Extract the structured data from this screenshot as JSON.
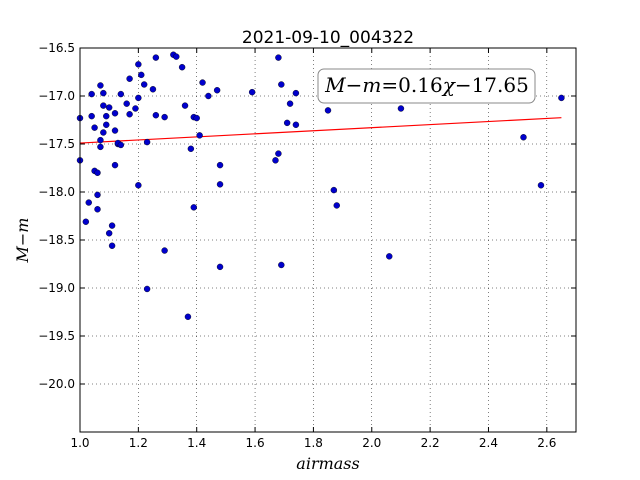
{
  "chart_data": {
    "type": "scatter",
    "title": "2021-09-10_004322",
    "xlabel": "airmass",
    "ylabel": "M−m",
    "xlim": [
      1.0,
      2.7
    ],
    "ylim": [
      -20.5,
      -16.5
    ],
    "y_inverted": true,
    "grid": true,
    "grid_style": "dotted",
    "xticks": [
      1.0,
      1.2,
      1.4,
      1.6,
      1.8,
      2.0,
      2.2,
      2.4,
      2.6
    ],
    "xtick_labels": [
      "1.0",
      "1.2",
      "1.4",
      "1.6",
      "1.8",
      "2.0",
      "2.2",
      "2.4",
      "2.6"
    ],
    "yticks": [
      -16.5,
      -17.0,
      -17.5,
      -18.0,
      -18.5,
      -19.0,
      -19.5,
      -20.0
    ],
    "ytick_labels": [
      "−16.5",
      "−17.0",
      "−17.5",
      "−18.0",
      "−18.5",
      "−19.0",
      "−19.5",
      "−20.0"
    ],
    "annotation": {
      "text_parts": [
        "M",
        "−",
        "m",
        "=0.16",
        "χ",
        "−17.65"
      ],
      "position": "top-right"
    },
    "fit_line": {
      "color": "#ff0000",
      "slope": 0.16,
      "intercept": -17.65,
      "x_range": [
        1.0,
        2.65
      ]
    },
    "series": [
      {
        "color": "#0000cc",
        "x": [
          1.0,
          1.0,
          1.02,
          1.03,
          1.04,
          1.04,
          1.05,
          1.05,
          1.06,
          1.06,
          1.06,
          1.07,
          1.07,
          1.07,
          1.08,
          1.08,
          1.08,
          1.09,
          1.09,
          1.1,
          1.1,
          1.11,
          1.11,
          1.12,
          1.12,
          1.12,
          1.13,
          1.13,
          1.14,
          1.14,
          1.16,
          1.17,
          1.17,
          1.19,
          1.2,
          1.2,
          1.2,
          1.21,
          1.22,
          1.23,
          1.23,
          1.25,
          1.26,
          1.26,
          1.29,
          1.29,
          1.32,
          1.33,
          1.35,
          1.36,
          1.37,
          1.38,
          1.39,
          1.39,
          1.4,
          1.41,
          1.42,
          1.44,
          1.47,
          1.48,
          1.48,
          1.48,
          1.59,
          1.67,
          1.68,
          1.68,
          1.69,
          1.69,
          1.71,
          1.72,
          1.74,
          1.74,
          1.85,
          1.87,
          1.88,
          2.06,
          2.1,
          2.52,
          2.58,
          2.65
        ],
        "y": [
          -17.23,
          -17.67,
          -18.31,
          -18.11,
          -17.21,
          -16.98,
          -17.78,
          -17.33,
          -18.18,
          -18.03,
          -17.8,
          -16.89,
          -17.53,
          -17.46,
          -16.97,
          -17.1,
          -17.38,
          -17.21,
          -17.3,
          -17.12,
          -18.43,
          -18.35,
          -18.56,
          -17.18,
          -17.36,
          -17.72,
          -17.5,
          -17.49,
          -16.98,
          -17.51,
          -17.08,
          -16.82,
          -17.19,
          -17.13,
          -16.67,
          -17.02,
          -17.93,
          -16.78,
          -16.88,
          -19.01,
          -17.48,
          -16.93,
          -17.2,
          -16.6,
          -18.61,
          -17.22,
          -16.57,
          -16.59,
          -16.7,
          -17.1,
          -19.3,
          -17.55,
          -17.22,
          -18.16,
          -17.23,
          -17.41,
          -16.86,
          -17.0,
          -16.94,
          -17.72,
          -17.92,
          -18.78,
          -16.96,
          -17.67,
          -16.6,
          -17.6,
          -16.88,
          -18.76,
          -17.28,
          -17.08,
          -17.3,
          -16.97,
          -17.15,
          -17.98,
          -18.14,
          -18.67,
          -17.13,
          -17.43,
          -17.93,
          -17.02
        ]
      }
    ]
  }
}
